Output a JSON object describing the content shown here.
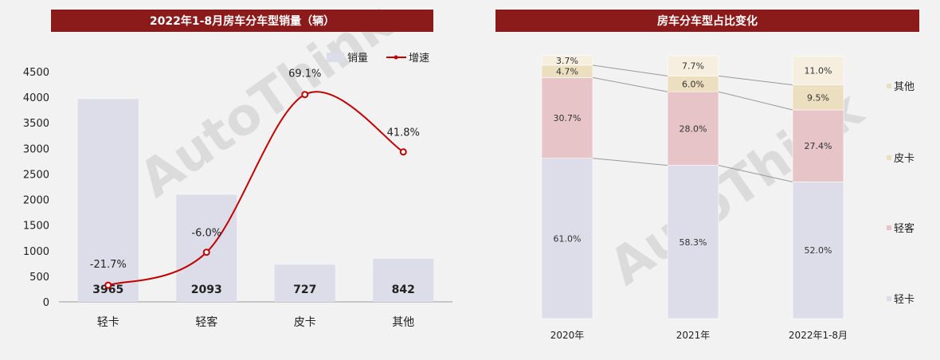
{
  "left_title": "2022年1-8月房车分车型销量（辆）",
  "right_title": "房车分车型占比变化",
  "watermark_text": "AutoThink",
  "legend": {
    "sales": "销量",
    "growth": "增速"
  },
  "colors": {
    "title_bg": "#8b1a1a",
    "bar": "#dcdde8",
    "line": "#c00000",
    "seg_light_truck": "#dcdde8",
    "seg_light_bus": "#e6c4c8",
    "seg_pickup": "#ecdfbf",
    "seg_other": "#f6efe0"
  },
  "chart_data": [
    {
      "type": "bar",
      "title": "2022年1-8月房车分车型销量（辆）",
      "categories": [
        "轻卡",
        "轻客",
        "皮卡",
        "其他"
      ],
      "ylim": [
        0,
        4500
      ],
      "yticks": [
        0,
        500,
        1000,
        1500,
        2000,
        2500,
        3000,
        3500,
        4000,
        4500
      ],
      "series": [
        {
          "name": "销量",
          "type": "bar",
          "values": [
            3965,
            2093,
            727,
            842
          ],
          "labels": [
            "3965",
            "2093",
            "727",
            "842"
          ]
        },
        {
          "name": "增速",
          "type": "line",
          "values": [
            -21.7,
            -6.0,
            69.1,
            41.8
          ],
          "labels": [
            "-21.7%",
            "-6.0%",
            "69.1%",
            "41.8%"
          ],
          "unit": "%"
        }
      ],
      "legend_position": "top-right",
      "grid": false
    },
    {
      "type": "bar",
      "stacked": true,
      "title": "房车分车型占比变化",
      "categories": [
        "2020年",
        "2021年",
        "2022年1-8月"
      ],
      "unit": "%",
      "series": [
        {
          "name": "轻卡",
          "values": [
            61.0,
            58.3,
            52.0
          ],
          "labels": [
            "61.0%",
            "58.3%",
            "52.0%"
          ]
        },
        {
          "name": "轻客",
          "values": [
            30.7,
            28.0,
            27.4
          ],
          "labels": [
            "30.7%",
            "28.0%",
            "27.4%"
          ]
        },
        {
          "name": "皮卡",
          "values": [
            4.7,
            6.0,
            9.5
          ],
          "labels": [
            "4.7%",
            "6.0%",
            "9.5%"
          ]
        },
        {
          "name": "其他",
          "values": [
            3.7,
            7.7,
            11.0
          ],
          "labels": [
            "3.7%",
            "7.7%",
            "11.0%"
          ]
        }
      ],
      "legend_position": "right",
      "grid": false
    }
  ]
}
